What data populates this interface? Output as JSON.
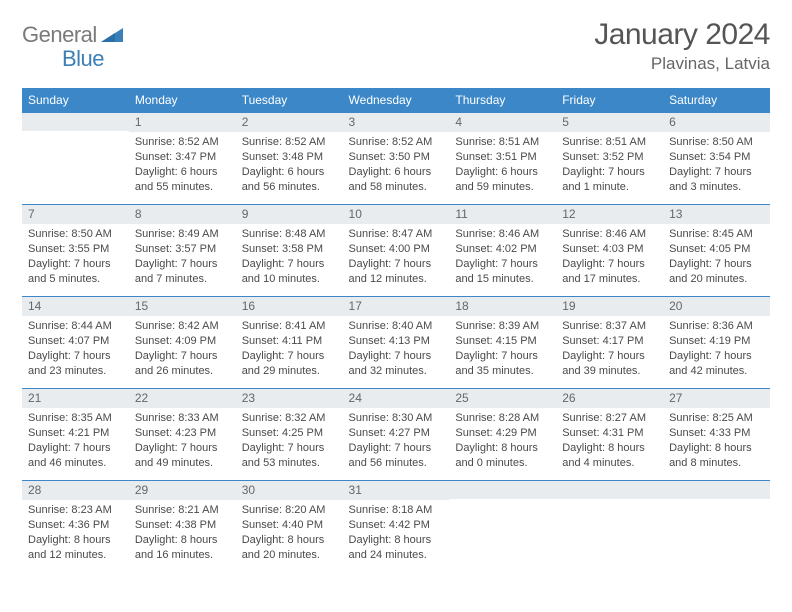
{
  "logo": {
    "word1": "General",
    "word2": "Blue"
  },
  "header": {
    "month_title": "January 2024",
    "location": "Plavinas, Latvia"
  },
  "colors": {
    "header_bg": "#3b87c8",
    "header_text": "#ffffff",
    "daynum_bg": "#e9ecef",
    "cell_border": "#3b87c8",
    "body_text": "#4a4a4a",
    "logo_gray": "#7a7a7a",
    "logo_blue": "#3b7fb8"
  },
  "weekdays": [
    "Sunday",
    "Monday",
    "Tuesday",
    "Wednesday",
    "Thursday",
    "Friday",
    "Saturday"
  ],
  "weeks": [
    [
      {
        "num": "",
        "sunrise": "",
        "sunset": "",
        "daylight": ""
      },
      {
        "num": "1",
        "sunrise": "Sunrise: 8:52 AM",
        "sunset": "Sunset: 3:47 PM",
        "daylight": "Daylight: 6 hours and 55 minutes."
      },
      {
        "num": "2",
        "sunrise": "Sunrise: 8:52 AM",
        "sunset": "Sunset: 3:48 PM",
        "daylight": "Daylight: 6 hours and 56 minutes."
      },
      {
        "num": "3",
        "sunrise": "Sunrise: 8:52 AM",
        "sunset": "Sunset: 3:50 PM",
        "daylight": "Daylight: 6 hours and 58 minutes."
      },
      {
        "num": "4",
        "sunrise": "Sunrise: 8:51 AM",
        "sunset": "Sunset: 3:51 PM",
        "daylight": "Daylight: 6 hours and 59 minutes."
      },
      {
        "num": "5",
        "sunrise": "Sunrise: 8:51 AM",
        "sunset": "Sunset: 3:52 PM",
        "daylight": "Daylight: 7 hours and 1 minute."
      },
      {
        "num": "6",
        "sunrise": "Sunrise: 8:50 AM",
        "sunset": "Sunset: 3:54 PM",
        "daylight": "Daylight: 7 hours and 3 minutes."
      }
    ],
    [
      {
        "num": "7",
        "sunrise": "Sunrise: 8:50 AM",
        "sunset": "Sunset: 3:55 PM",
        "daylight": "Daylight: 7 hours and 5 minutes."
      },
      {
        "num": "8",
        "sunrise": "Sunrise: 8:49 AM",
        "sunset": "Sunset: 3:57 PM",
        "daylight": "Daylight: 7 hours and 7 minutes."
      },
      {
        "num": "9",
        "sunrise": "Sunrise: 8:48 AM",
        "sunset": "Sunset: 3:58 PM",
        "daylight": "Daylight: 7 hours and 10 minutes."
      },
      {
        "num": "10",
        "sunrise": "Sunrise: 8:47 AM",
        "sunset": "Sunset: 4:00 PM",
        "daylight": "Daylight: 7 hours and 12 minutes."
      },
      {
        "num": "11",
        "sunrise": "Sunrise: 8:46 AM",
        "sunset": "Sunset: 4:02 PM",
        "daylight": "Daylight: 7 hours and 15 minutes."
      },
      {
        "num": "12",
        "sunrise": "Sunrise: 8:46 AM",
        "sunset": "Sunset: 4:03 PM",
        "daylight": "Daylight: 7 hours and 17 minutes."
      },
      {
        "num": "13",
        "sunrise": "Sunrise: 8:45 AM",
        "sunset": "Sunset: 4:05 PM",
        "daylight": "Daylight: 7 hours and 20 minutes."
      }
    ],
    [
      {
        "num": "14",
        "sunrise": "Sunrise: 8:44 AM",
        "sunset": "Sunset: 4:07 PM",
        "daylight": "Daylight: 7 hours and 23 minutes."
      },
      {
        "num": "15",
        "sunrise": "Sunrise: 8:42 AM",
        "sunset": "Sunset: 4:09 PM",
        "daylight": "Daylight: 7 hours and 26 minutes."
      },
      {
        "num": "16",
        "sunrise": "Sunrise: 8:41 AM",
        "sunset": "Sunset: 4:11 PM",
        "daylight": "Daylight: 7 hours and 29 minutes."
      },
      {
        "num": "17",
        "sunrise": "Sunrise: 8:40 AM",
        "sunset": "Sunset: 4:13 PM",
        "daylight": "Daylight: 7 hours and 32 minutes."
      },
      {
        "num": "18",
        "sunrise": "Sunrise: 8:39 AM",
        "sunset": "Sunset: 4:15 PM",
        "daylight": "Daylight: 7 hours and 35 minutes."
      },
      {
        "num": "19",
        "sunrise": "Sunrise: 8:37 AM",
        "sunset": "Sunset: 4:17 PM",
        "daylight": "Daylight: 7 hours and 39 minutes."
      },
      {
        "num": "20",
        "sunrise": "Sunrise: 8:36 AM",
        "sunset": "Sunset: 4:19 PM",
        "daylight": "Daylight: 7 hours and 42 minutes."
      }
    ],
    [
      {
        "num": "21",
        "sunrise": "Sunrise: 8:35 AM",
        "sunset": "Sunset: 4:21 PM",
        "daylight": "Daylight: 7 hours and 46 minutes."
      },
      {
        "num": "22",
        "sunrise": "Sunrise: 8:33 AM",
        "sunset": "Sunset: 4:23 PM",
        "daylight": "Daylight: 7 hours and 49 minutes."
      },
      {
        "num": "23",
        "sunrise": "Sunrise: 8:32 AM",
        "sunset": "Sunset: 4:25 PM",
        "daylight": "Daylight: 7 hours and 53 minutes."
      },
      {
        "num": "24",
        "sunrise": "Sunrise: 8:30 AM",
        "sunset": "Sunset: 4:27 PM",
        "daylight": "Daylight: 7 hours and 56 minutes."
      },
      {
        "num": "25",
        "sunrise": "Sunrise: 8:28 AM",
        "sunset": "Sunset: 4:29 PM",
        "daylight": "Daylight: 8 hours and 0 minutes."
      },
      {
        "num": "26",
        "sunrise": "Sunrise: 8:27 AM",
        "sunset": "Sunset: 4:31 PM",
        "daylight": "Daylight: 8 hours and 4 minutes."
      },
      {
        "num": "27",
        "sunrise": "Sunrise: 8:25 AM",
        "sunset": "Sunset: 4:33 PM",
        "daylight": "Daylight: 8 hours and 8 minutes."
      }
    ],
    [
      {
        "num": "28",
        "sunrise": "Sunrise: 8:23 AM",
        "sunset": "Sunset: 4:36 PM",
        "daylight": "Daylight: 8 hours and 12 minutes."
      },
      {
        "num": "29",
        "sunrise": "Sunrise: 8:21 AM",
        "sunset": "Sunset: 4:38 PM",
        "daylight": "Daylight: 8 hours and 16 minutes."
      },
      {
        "num": "30",
        "sunrise": "Sunrise: 8:20 AM",
        "sunset": "Sunset: 4:40 PM",
        "daylight": "Daylight: 8 hours and 20 minutes."
      },
      {
        "num": "31",
        "sunrise": "Sunrise: 8:18 AM",
        "sunset": "Sunset: 4:42 PM",
        "daylight": "Daylight: 8 hours and 24 minutes."
      },
      {
        "num": "",
        "sunrise": "",
        "sunset": "",
        "daylight": ""
      },
      {
        "num": "",
        "sunrise": "",
        "sunset": "",
        "daylight": ""
      },
      {
        "num": "",
        "sunrise": "",
        "sunset": "",
        "daylight": ""
      }
    ]
  ]
}
